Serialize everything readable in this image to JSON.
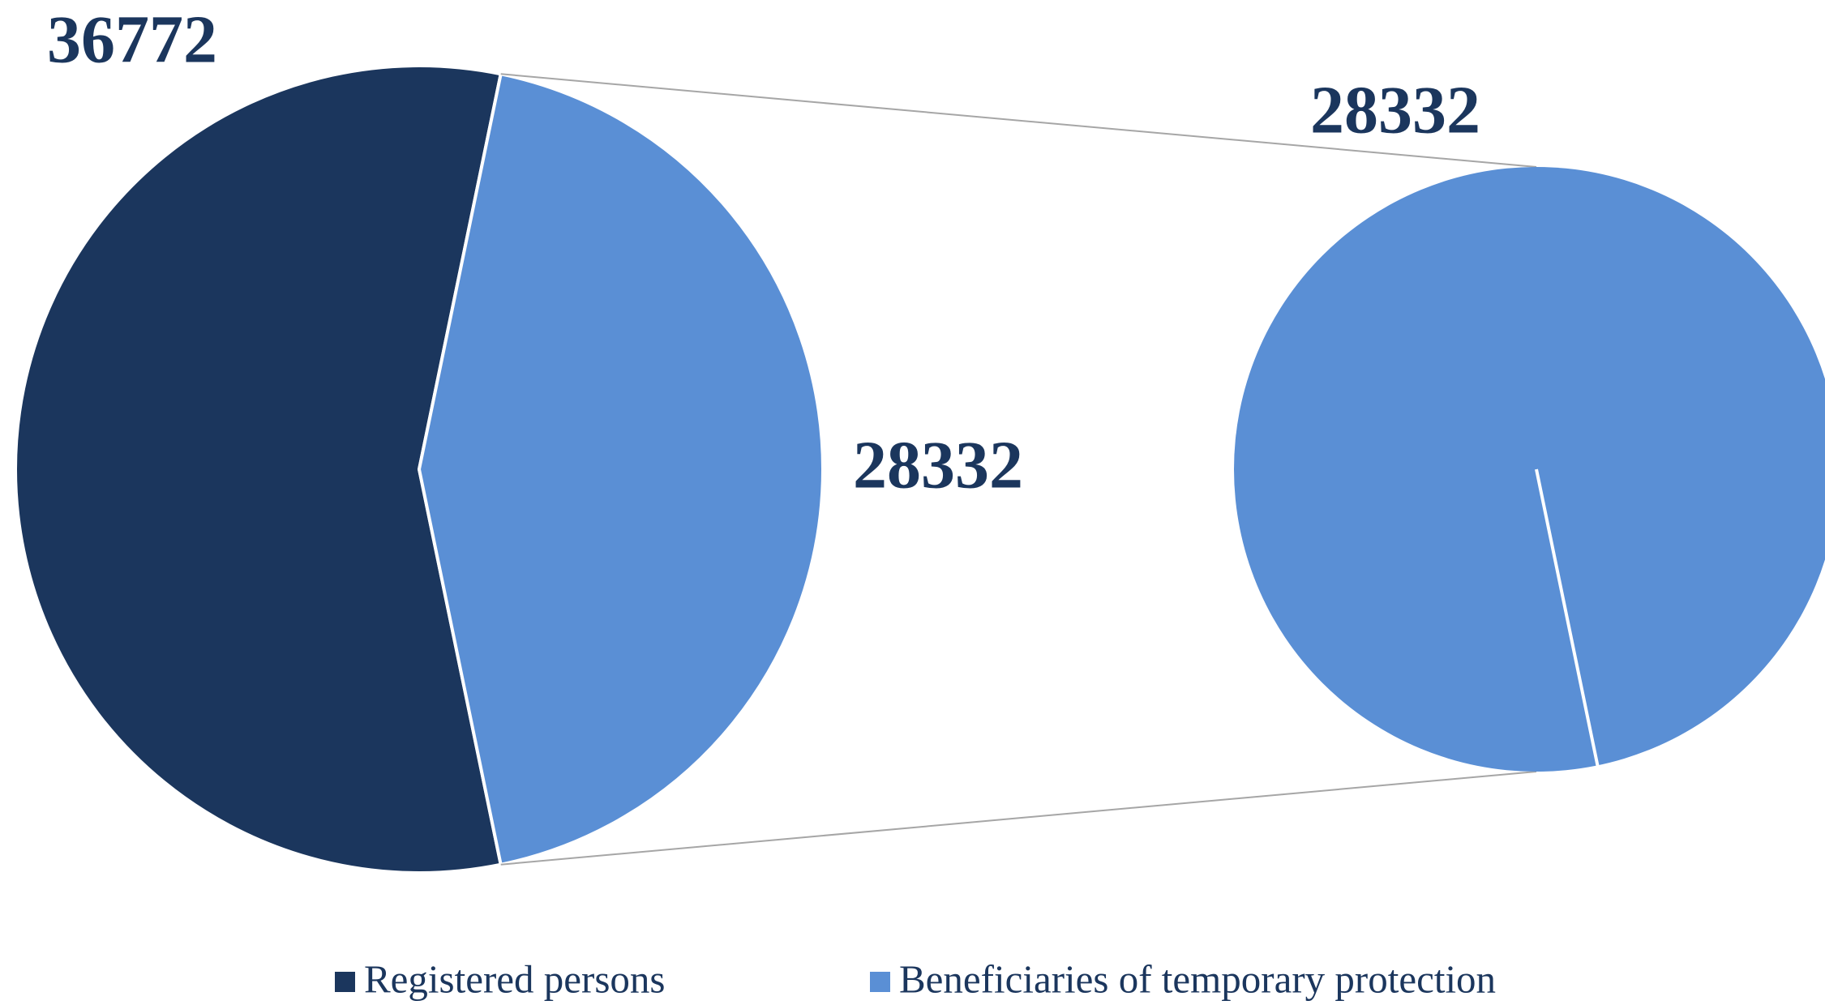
{
  "chart_data": {
    "type": "pie-of-pie",
    "categories": [
      "Registered persons",
      "Beneficiaries of temporary protection"
    ],
    "values": [
      36772,
      28332
    ],
    "colors": [
      "#1b365d",
      "#5a8fd5"
    ],
    "legend": "bottom"
  }
}
